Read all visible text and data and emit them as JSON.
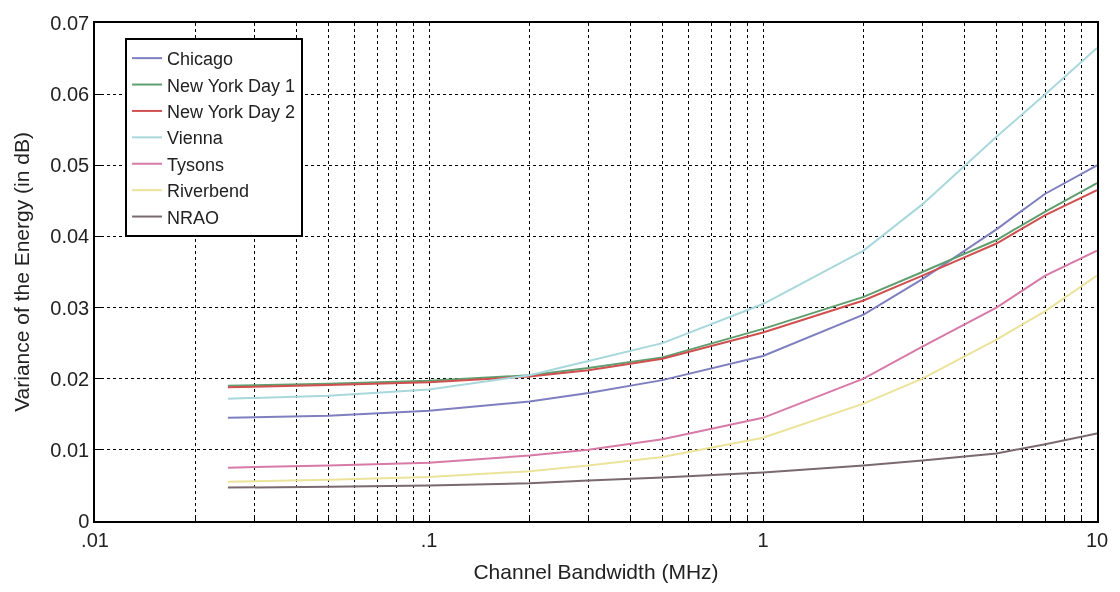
{
  "chart_data": {
    "type": "line",
    "xlabel": "Channel Bandwidth (MHz)",
    "ylabel": "Variance of the Energy (in dB)",
    "log": "x",
    "grid": true,
    "legend": "top left",
    "marker": "none",
    "line_style": "solid",
    "xlim": [
      0.01,
      10
    ],
    "ylim": [
      0,
      0.07
    ],
    "xticks": [
      {
        "value": 0.01,
        "label": ".01"
      },
      {
        "value": 0.02,
        "label": null
      },
      {
        "value": 0.03,
        "label": null
      },
      {
        "value": 0.04,
        "label": null
      },
      {
        "value": 0.05,
        "label": null
      },
      {
        "value": 0.06,
        "label": null
      },
      {
        "value": 0.07,
        "label": null
      },
      {
        "value": 0.08,
        "label": null
      },
      {
        "value": 0.09,
        "label": null
      },
      {
        "value": 0.1,
        "label": ".1"
      },
      {
        "value": 0.2,
        "label": null
      },
      {
        "value": 0.3,
        "label": null
      },
      {
        "value": 0.4,
        "label": null
      },
      {
        "value": 0.5,
        "label": null
      },
      {
        "value": 0.6,
        "label": null
      },
      {
        "value": 0.7,
        "label": null
      },
      {
        "value": 0.8,
        "label": null
      },
      {
        "value": 0.9,
        "label": null
      },
      1,
      {
        "value": 2,
        "label": null
      },
      {
        "value": 3,
        "label": null
      },
      {
        "value": 4,
        "label": null
      },
      {
        "value": 5,
        "label": null
      },
      {
        "value": 6,
        "label": null
      },
      {
        "value": 7,
        "label": null
      },
      {
        "value": 8,
        "label": null
      },
      {
        "value": 9,
        "label": null
      },
      10
    ],
    "yticks": [
      0,
      0.01,
      0.02,
      0.03,
      0.04,
      0.05,
      0.06,
      0.07
    ],
    "x": [
      0.025,
      0.05,
      0.1,
      0.2,
      0.3,
      0.5,
      1,
      2,
      3,
      5,
      7,
      10
    ],
    "series": [
      {
        "name": "Chicago",
        "color": "#7f7fc0",
        "values": [
          0.0145,
          0.0148,
          0.0155,
          0.0168,
          0.018,
          0.0198,
          0.0232,
          0.029,
          0.034,
          0.041,
          0.046,
          0.05
        ]
      },
      {
        "name": "New York Day 1",
        "color": "#5f9f6f",
        "values": [
          0.019,
          0.0193,
          0.0197,
          0.0205,
          0.0215,
          0.023,
          0.027,
          0.0315,
          0.035,
          0.0395,
          0.0435,
          0.0475
        ]
      },
      {
        "name": "New York Day 2",
        "color": "#d05050",
        "values": [
          0.0188,
          0.0191,
          0.0195,
          0.0203,
          0.0212,
          0.0228,
          0.0265,
          0.031,
          0.0345,
          0.039,
          0.043,
          0.0465
        ]
      },
      {
        "name": "Vienna",
        "color": "#a8d8dc",
        "values": [
          0.0172,
          0.0176,
          0.0185,
          0.0205,
          0.0225,
          0.025,
          0.0305,
          0.038,
          0.0445,
          0.054,
          0.06,
          0.0665
        ]
      },
      {
        "name": "Tysons",
        "color": "#d77aa8",
        "values": [
          0.0075,
          0.0078,
          0.0082,
          0.0092,
          0.01,
          0.0115,
          0.0145,
          0.02,
          0.0245,
          0.03,
          0.0345,
          0.038
        ]
      },
      {
        "name": "Riverbend",
        "color": "#ece39a",
        "values": [
          0.0055,
          0.0058,
          0.0062,
          0.007,
          0.0078,
          0.009,
          0.0117,
          0.0165,
          0.02,
          0.0255,
          0.0295,
          0.0345
        ]
      },
      {
        "name": "NRAO",
        "color": "#7a6a70",
        "values": [
          0.0047,
          0.0048,
          0.005,
          0.0053,
          0.0057,
          0.0061,
          0.0068,
          0.0078,
          0.0085,
          0.0095,
          0.0108,
          0.0123
        ]
      }
    ]
  }
}
